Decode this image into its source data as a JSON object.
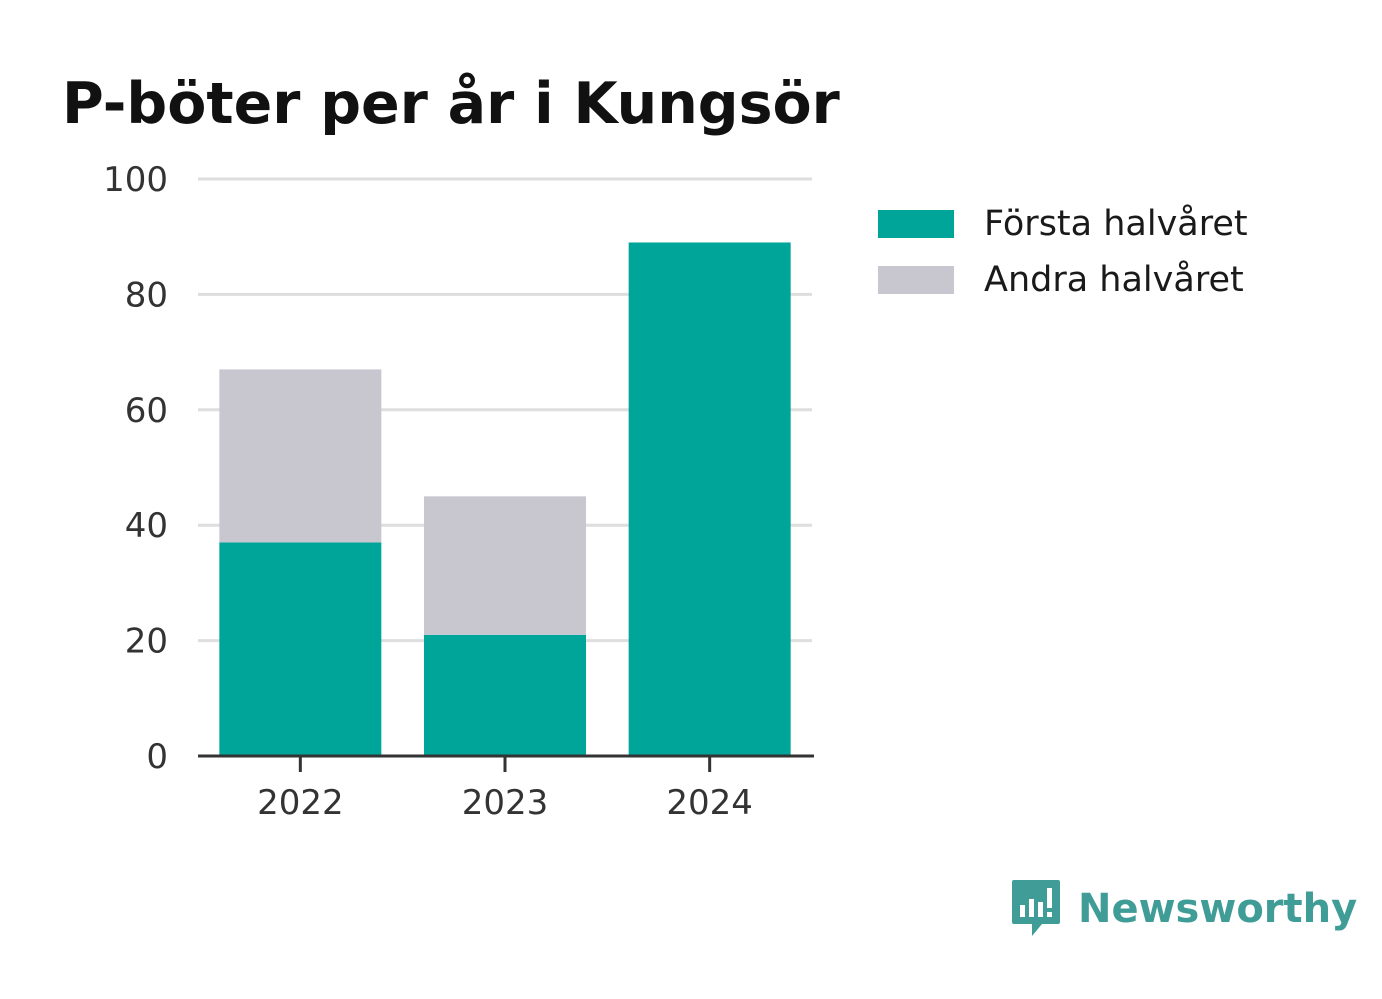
{
  "colors": {
    "forsta": "#00a59a",
    "andra": "#c8c7d0",
    "grid": "#dedede",
    "axis": "#333333",
    "brand": "#3f9c96"
  },
  "brand": {
    "name": "Newsworthy",
    "icon": "bar-chart-speech-bubble-icon"
  },
  "chart_data": {
    "type": "bar",
    "stacked": true,
    "title": "P-böter per år i Kungsör",
    "xlabel": "",
    "ylabel": "",
    "categories": [
      "2022",
      "2023",
      "2024"
    ],
    "series": [
      {
        "name": "Första halvåret",
        "color": "#00a59a",
        "values": [
          37,
          21,
          89
        ]
      },
      {
        "name": "Andra halvåret",
        "color": "#c8c7d0",
        "values": [
          30,
          24,
          0
        ]
      }
    ],
    "ylim": [
      0,
      100
    ],
    "yticks": [
      "0",
      "20",
      "40",
      "60",
      "80",
      "100"
    ],
    "grid": true,
    "legend_position": "right"
  }
}
